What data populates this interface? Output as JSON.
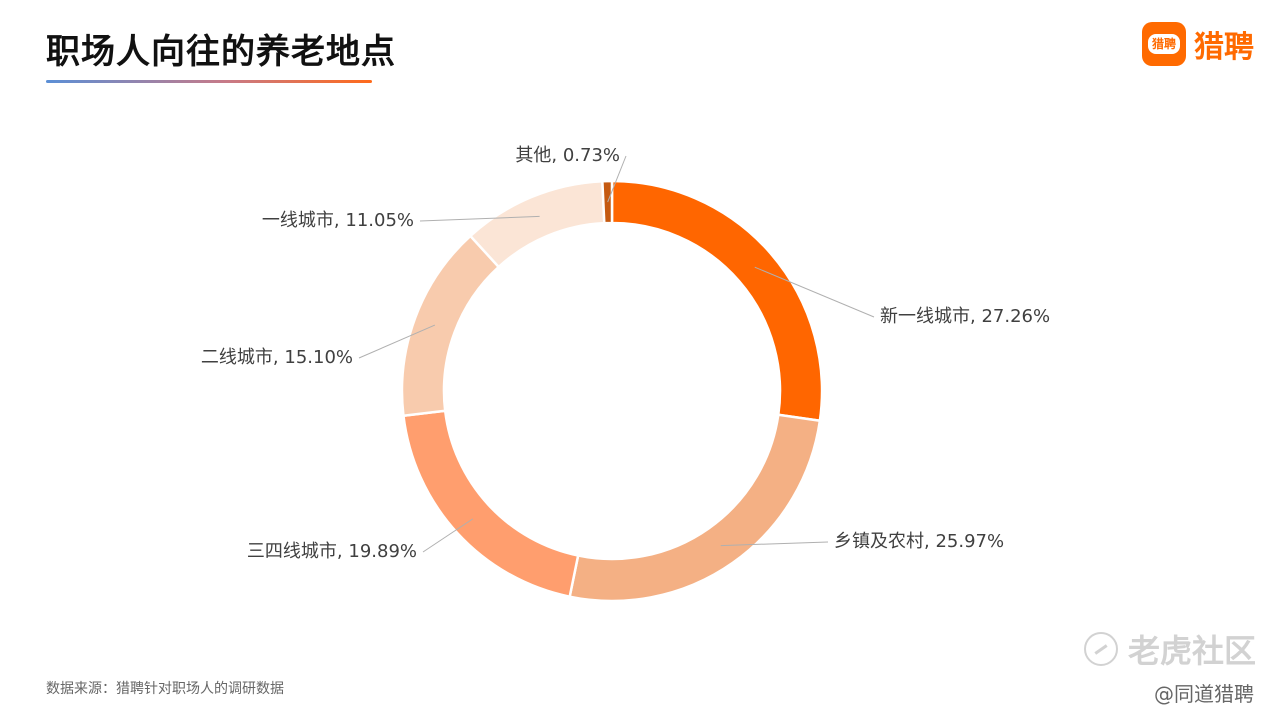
{
  "header": {
    "title": "职场人向往的养老地点",
    "brand_name": "猎聘",
    "brand_logo_text": "猎聘"
  },
  "colors": {
    "accent": "#ff6a00",
    "title_underline": [
      "#5b8fd6",
      "#ff6a1a"
    ]
  },
  "chart_data": {
    "type": "pie",
    "variant": "donut",
    "categories": [
      "新一线城市",
      "乡镇及农村",
      "三四线城市",
      "二线城市",
      "一线城市",
      "其他"
    ],
    "values": [
      27.26,
      25.97,
      19.89,
      15.1,
      11.05,
      0.73
    ],
    "labels": [
      "新一线城市, 27.26%",
      "乡镇及农村, 25.97%",
      "三四线城市, 19.89%",
      "二线城市, 15.10%",
      "一线城市, 11.05%",
      "其他, 0.73%"
    ],
    "colors": [
      "#ff6600",
      "#f4b084",
      "#ff9e6e",
      "#f8cbad",
      "#fbe5d6",
      "#c55a11"
    ],
    "unit": "%",
    "start": "12 o'clock",
    "direction": "clockwise",
    "legend": "none"
  },
  "footer": {
    "source": "数据来源：猎聘针对职场人的调研数据",
    "watermark": "老虎社区",
    "attribution": "@同道猎聘"
  }
}
